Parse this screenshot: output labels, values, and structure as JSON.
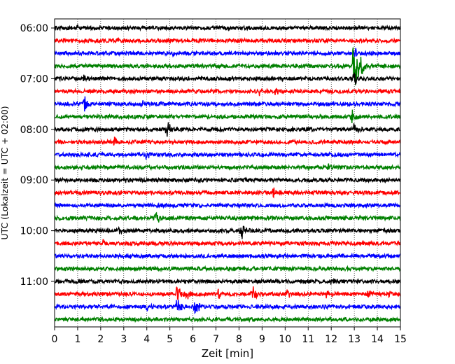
{
  "chart_data": {
    "type": "line",
    "title": "",
    "xlabel": "Zeit  [min]",
    "ylabel": "UTC (Lokalzeit = UTC + 02:00)",
    "xlim": [
      0,
      15
    ],
    "x_ticks": [
      "0",
      "1",
      "2",
      "3",
      "4",
      "5",
      "6",
      "7",
      "8",
      "9",
      "10",
      "11",
      "12",
      "13",
      "14",
      "15"
    ],
    "y_ticks": [
      "06:00",
      "07:00",
      "08:00",
      "09:00",
      "10:00",
      "11:00"
    ],
    "grid": "vertical dotted at each minute",
    "trace_interval_min": 15,
    "color_cycle": [
      "#000000",
      "#ff0000",
      "#0000ff",
      "#008000"
    ],
    "traces": [
      {
        "start": "06:00",
        "color": "#000000",
        "events": [
          {
            "t": 1.0,
            "amp": 0.3
          }
        ]
      },
      {
        "start": "06:15",
        "color": "#ff0000",
        "events": []
      },
      {
        "start": "06:30",
        "color": "#0000ff",
        "events": [
          {
            "t": 5.1,
            "amp": 0.3
          },
          {
            "t": 13.0,
            "amp": 0.6
          }
        ]
      },
      {
        "start": "06:45",
        "color": "#008000",
        "events": [
          {
            "t": 13.0,
            "amp": 4.0
          },
          {
            "t": 13.3,
            "amp": 1.2
          }
        ]
      },
      {
        "start": "07:00",
        "color": "#000000",
        "events": [
          {
            "t": 1.3,
            "amp": 0.4
          },
          {
            "t": 13.0,
            "amp": 0.8
          }
        ]
      },
      {
        "start": "07:15",
        "color": "#ff0000",
        "events": [
          {
            "t": 8.9,
            "amp": 0.4
          },
          {
            "t": 9.6,
            "amp": 0.4
          }
        ]
      },
      {
        "start": "07:30",
        "color": "#0000ff",
        "events": [
          {
            "t": 1.3,
            "amp": 0.9
          },
          {
            "t": 3.8,
            "amp": 0.4
          }
        ]
      },
      {
        "start": "07:45",
        "color": "#008000",
        "events": [
          {
            "t": 12.9,
            "amp": 0.8
          }
        ]
      },
      {
        "start": "08:00",
        "color": "#000000",
        "events": [
          {
            "t": 4.9,
            "amp": 1.0
          },
          {
            "t": 13.0,
            "amp": 0.8
          }
        ]
      },
      {
        "start": "08:15",
        "color": "#ff0000",
        "events": [
          {
            "t": 2.6,
            "amp": 0.6
          }
        ]
      },
      {
        "start": "08:30",
        "color": "#0000ff",
        "events": [
          {
            "t": 4.0,
            "amp": 0.5
          }
        ]
      },
      {
        "start": "08:45",
        "color": "#008000",
        "events": [
          {
            "t": 11.9,
            "amp": 0.4
          }
        ]
      },
      {
        "start": "09:00",
        "color": "#000000",
        "events": [
          {
            "t": 3.1,
            "amp": 0.3
          }
        ]
      },
      {
        "start": "09:15",
        "color": "#ff0000",
        "events": [
          {
            "t": 9.5,
            "amp": 0.6
          }
        ]
      },
      {
        "start": "09:30",
        "color": "#0000ff",
        "events": []
      },
      {
        "start": "09:45",
        "color": "#008000",
        "events": [
          {
            "t": 4.4,
            "amp": 0.7
          }
        ]
      },
      {
        "start": "10:00",
        "color": "#000000",
        "events": [
          {
            "t": 8.1,
            "amp": 1.0
          },
          {
            "t": 2.8,
            "amp": 0.3
          }
        ]
      },
      {
        "start": "10:15",
        "color": "#ff0000",
        "events": [
          {
            "t": 2.1,
            "amp": 0.3
          }
        ]
      },
      {
        "start": "10:30",
        "color": "#0000ff",
        "events": []
      },
      {
        "start": "10:45",
        "color": "#008000",
        "events": []
      },
      {
        "start": "11:00",
        "color": "#000000",
        "events": [
          {
            "t": 12.0,
            "amp": 0.3
          }
        ]
      },
      {
        "start": "11:15",
        "color": "#ff0000",
        "events": [
          {
            "t": 5.3,
            "amp": 0.9
          },
          {
            "t": 5.7,
            "amp": 0.7
          },
          {
            "t": 7.1,
            "amp": 0.6
          },
          {
            "t": 8.6,
            "amp": 0.9
          },
          {
            "t": 10.1,
            "amp": 0.7
          },
          {
            "t": 11.8,
            "amp": 0.5
          },
          {
            "t": 13.6,
            "amp": 0.5
          },
          {
            "t": 14.5,
            "amp": 0.4
          }
        ]
      },
      {
        "start": "11:30",
        "color": "#0000ff",
        "events": [
          {
            "t": 5.3,
            "amp": 0.9
          },
          {
            "t": 6.1,
            "amp": 0.8
          },
          {
            "t": 4.0,
            "amp": 0.4
          }
        ]
      },
      {
        "start": "11:45",
        "color": "#008000",
        "events": []
      }
    ]
  }
}
